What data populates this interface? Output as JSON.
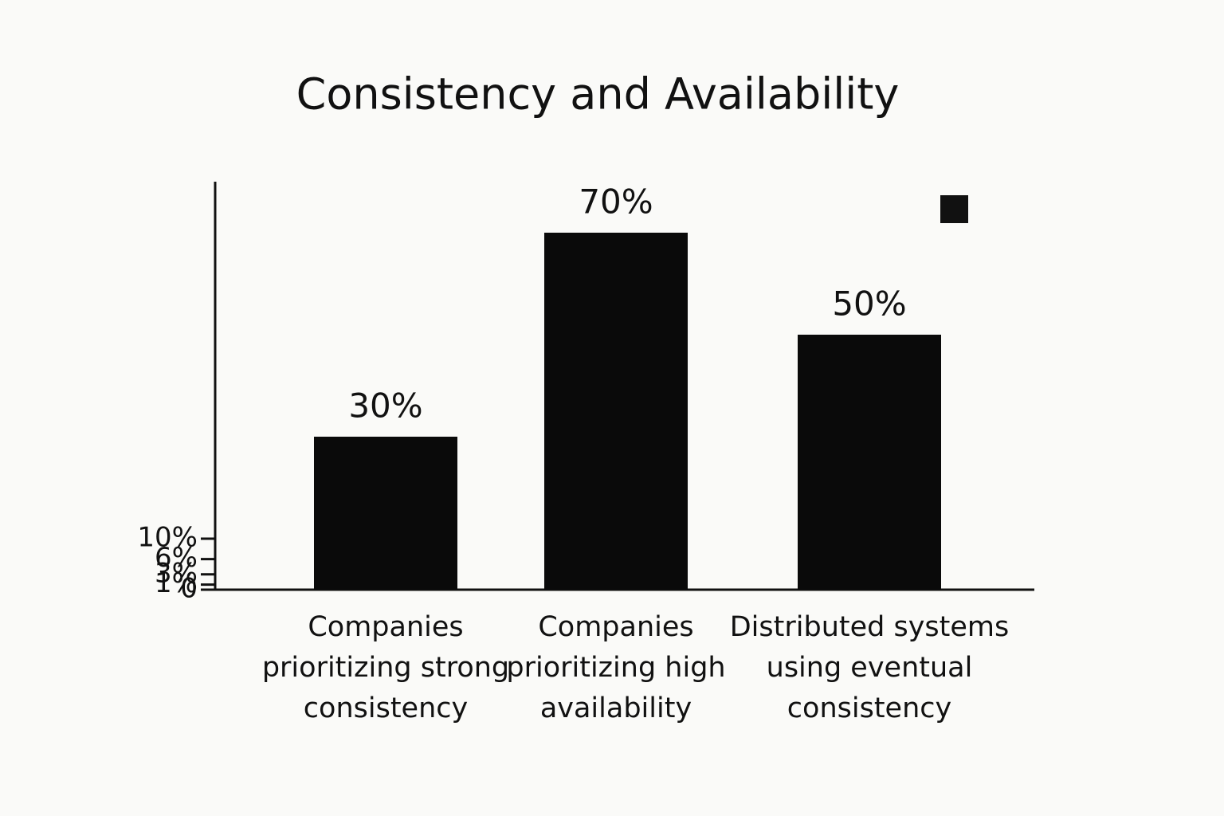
{
  "chart_data": {
    "type": "bar",
    "title": "Consistency and Availability",
    "categories": [
      "Companies prioritizing strong consistency",
      "Companies prioritizing high availability",
      "Distributed systems using eventual consistency"
    ],
    "values": [
      30,
      70,
      50
    ],
    "value_labels": [
      "30%",
      "70%",
      "50%"
    ],
    "color": "#0a0a0a",
    "ylim": [
      0,
      80
    ],
    "yticks": [
      {
        "value": 10,
        "label": "10%"
      },
      {
        "value": 6,
        "label": "6%"
      },
      {
        "value": 3,
        "label": "3%"
      },
      {
        "value": 1,
        "label": "1%"
      },
      0
    ],
    "grid": false
  }
}
